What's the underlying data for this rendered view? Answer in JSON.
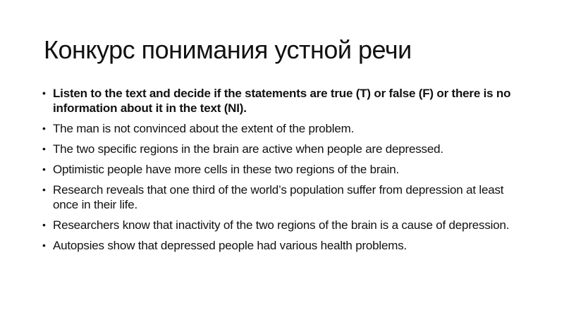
{
  "slide": {
    "title": "Конкурс понимания устной речи",
    "bullets": [
      "Listen to the text and decide if the statements are true (T) or false (F) or there is no information about it in the text (NI).",
      "The man is not convinced about the extent of the problem.",
      "The two specific regions in the brain are active when people are depressed.",
      "Optimistic people have more cells in these two regions of the brain.",
      "Research reveals that one third of the world’s population suffer from depression at least once in their life.",
      "Researchers know that inactivity of the two regions of the brain is a cause of depression.",
      "Autopsies show that depressed people had various health problems."
    ]
  }
}
